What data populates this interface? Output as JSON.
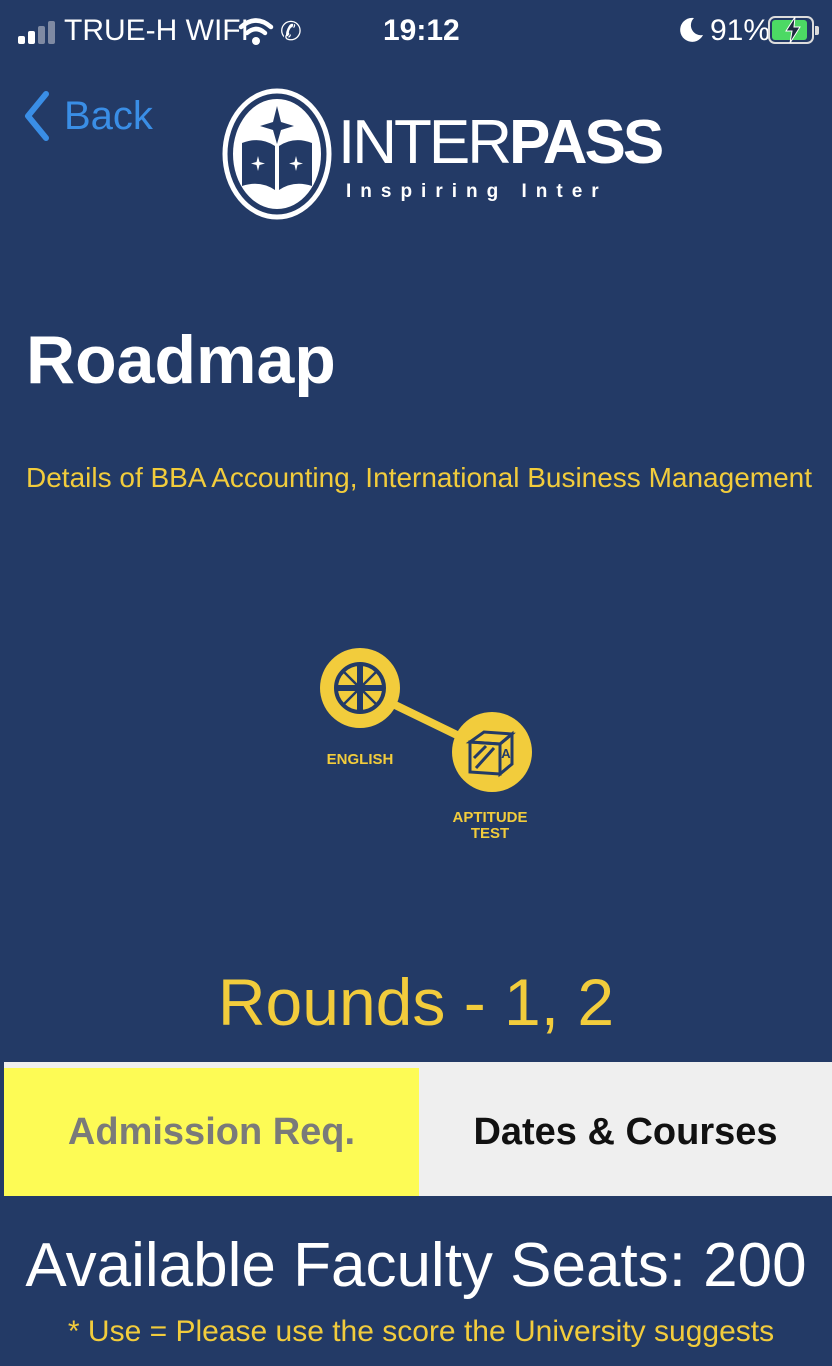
{
  "status_bar": {
    "carrier": "TRUE-H WIFI",
    "time": "19:12",
    "battery_percent": "91%",
    "battery_level": 0.91,
    "icons": [
      "signal-icon",
      "wifi-icon",
      "call-forward-icon",
      "moon-icon",
      "battery-charging-icon"
    ]
  },
  "nav": {
    "back_label": "Back",
    "back_icon": "chevron-left-icon"
  },
  "logo": {
    "word_light": "INTER",
    "word_bold": "PASS",
    "tagline": "Inspiring Inter",
    "icon": "open-book-star-icon"
  },
  "page": {
    "title": "Roadmap",
    "subtitle": "Details of BBA Accounting, International Business Management"
  },
  "roadmap": {
    "steps": [
      {
        "label": "ENGLISH",
        "icon": "uk-flag-icon"
      },
      {
        "label": "APTITUDE TEST",
        "label_lines": [
          "APTITUDE",
          "TEST"
        ],
        "icon": "letter-block-icon"
      }
    ],
    "rounds": "Rounds - 1, 2"
  },
  "tabs": [
    {
      "label": "Admission Req.",
      "selected": true
    },
    {
      "label": "Dates & Courses",
      "selected": false
    }
  ],
  "seats_text": "Available Faculty Seats: 200",
  "note": "* Use = Please use the score the University suggests",
  "colors": {
    "background": "#233a66",
    "accent_yellow": "#f2cc3c",
    "tab_selected": "#fdfb55",
    "tab_unselected": "#efefef",
    "link_blue": "#3a8ee6"
  }
}
